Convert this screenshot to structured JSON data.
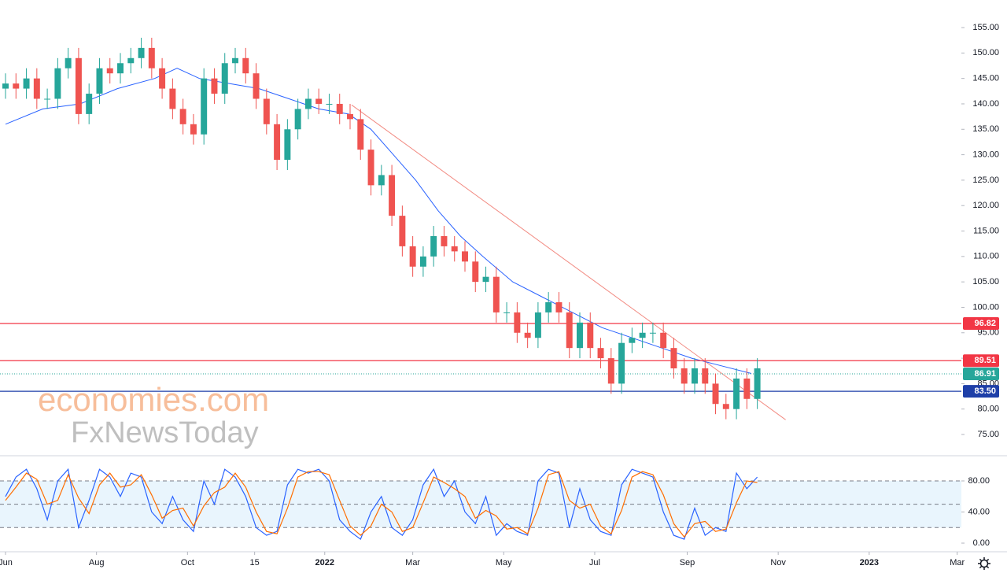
{
  "chart_data": {
    "type": "candlestick",
    "watermark": [
      "economies.com",
      "FxNewsToday"
    ],
    "up_color": "#26a69a",
    "down_color": "#ef5350",
    "x": [
      0,
      7,
      14,
      21,
      28,
      35,
      42,
      49,
      56,
      63,
      70,
      77,
      84,
      91,
      98,
      105,
      112,
      119,
      126,
      133,
      140,
      147,
      154,
      161,
      168,
      175,
      182,
      189,
      196,
      203,
      210,
      217,
      224,
      231,
      238,
      245,
      252,
      259,
      266,
      273,
      280,
      287,
      294,
      301,
      308,
      315,
      322,
      329,
      336,
      343,
      350,
      357,
      364,
      371,
      378,
      385,
      392,
      399,
      406,
      413,
      420,
      427,
      434,
      441,
      448,
      455,
      462,
      469,
      476,
      483,
      490,
      497,
      504
    ],
    "open": [
      143,
      144,
      143,
      145,
      141,
      141,
      147,
      149,
      138,
      142,
      147,
      146,
      148,
      149,
      151,
      147,
      143,
      139,
      136,
      134,
      145,
      142,
      148,
      149,
      146,
      141,
      136,
      129,
      135,
      139,
      141,
      140,
      140,
      138,
      137,
      131,
      124,
      126,
      118,
      112,
      108,
      110,
      114,
      112,
      111,
      109,
      105,
      106,
      99,
      99,
      95,
      94,
      99,
      101,
      99,
      92,
      97,
      92,
      90,
      85,
      93,
      94,
      95,
      95,
      92,
      88,
      85,
      88,
      85,
      81,
      80,
      86,
      82
    ],
    "high": [
      146,
      146,
      147,
      147,
      143,
      149,
      151,
      151,
      144,
      149,
      149,
      150,
      151,
      153,
      153,
      149,
      145,
      141,
      138,
      147,
      147,
      150,
      151,
      151,
      148,
      143,
      138,
      137,
      141,
      143,
      143,
      142,
      142,
      140,
      139,
      133,
      128,
      128,
      120,
      114,
      112,
      116,
      116,
      114,
      113,
      111,
      108,
      108,
      101,
      101,
      97,
      101,
      103,
      103,
      101,
      99,
      99,
      94,
      92,
      95,
      96,
      97,
      97,
      97,
      94,
      90,
      90,
      90,
      87,
      83,
      88,
      88,
      90
    ],
    "low": [
      141,
      141,
      141,
      139,
      139,
      139,
      145,
      136,
      136,
      140,
      144,
      144,
      146,
      147,
      145,
      141,
      137,
      134,
      132,
      132,
      140,
      140,
      146,
      144,
      139,
      134,
      127,
      127,
      133,
      137,
      138,
      138,
      136,
      135,
      129,
      122,
      122,
      116,
      110,
      106,
      106,
      108,
      110,
      109,
      107,
      103,
      103,
      97,
      97,
      93,
      92,
      92,
      97,
      97,
      90,
      90,
      90,
      88,
      83,
      83,
      91,
      92,
      93,
      90,
      86,
      83,
      83,
      83,
      79,
      78,
      78,
      80,
      80
    ],
    "close": [
      144,
      143,
      145,
      141,
      141,
      147,
      149,
      138,
      142,
      147,
      146,
      148,
      149,
      151,
      147,
      143,
      139,
      136,
      134,
      145,
      142,
      148,
      149,
      146,
      141,
      136,
      129,
      135,
      139,
      141,
      140,
      140,
      138,
      137,
      131,
      124,
      126,
      118,
      112,
      108,
      110,
      114,
      112,
      111,
      109,
      105,
      106,
      99,
      99,
      95,
      94,
      99,
      101,
      99,
      92,
      97,
      92,
      90,
      85,
      93,
      94,
      95,
      95,
      92,
      88,
      85,
      88,
      85,
      81,
      80,
      86,
      82,
      88
    ],
    "xlim": [
      -3.7,
      640.8
    ],
    "xticks": [
      {
        "value": 0,
        "label": "Jun"
      },
      {
        "value": 61,
        "label": "Aug"
      },
      {
        "value": 122,
        "label": "Oct"
      },
      {
        "value": 167,
        "label": "15"
      },
      {
        "value": 214,
        "label": "2022"
      },
      {
        "value": 273,
        "label": "Mar"
      },
      {
        "value": 334,
        "label": "May"
      },
      {
        "value": 395,
        "label": "Jul"
      },
      {
        "value": 457,
        "label": "Sep"
      },
      {
        "value": 518,
        "label": "Nov"
      },
      {
        "value": 579,
        "label": "2023"
      },
      {
        "value": 638,
        "label": "Mar"
      }
    ],
    "ylim": [
      70.98,
      160.42
    ],
    "yticks": [
      {
        "value": 75,
        "label": "75.00"
      },
      {
        "value": 80,
        "label": "80.00"
      },
      {
        "value": 85,
        "label": "85.00"
      },
      {
        "value": 90,
        "label": "90.00"
      },
      {
        "value": 95,
        "label": "95.00"
      },
      {
        "value": 100,
        "label": "100.00"
      },
      {
        "value": 105,
        "label": "105.00"
      },
      {
        "value": 110,
        "label": "110.00"
      },
      {
        "value": 115,
        "label": "115.00"
      },
      {
        "value": 120,
        "label": "120.00"
      },
      {
        "value": 125,
        "label": "125.00"
      },
      {
        "value": 130,
        "label": "130.00"
      },
      {
        "value": 135,
        "label": "135.00"
      },
      {
        "value": 140,
        "label": "140.00"
      },
      {
        "value": 145,
        "label": "145.00"
      },
      {
        "value": 150,
        "label": "150.00"
      },
      {
        "value": 155,
        "label": "155.00"
      }
    ],
    "moving_average": {
      "color": "#2962ff",
      "x": [
        0,
        25,
        50,
        75,
        100,
        115,
        130,
        150,
        170,
        190,
        210,
        230,
        245,
        260,
        275,
        290,
        305,
        320,
        340,
        360,
        380,
        400,
        420,
        440,
        460,
        480,
        500
      ],
      "values": [
        136,
        139,
        140,
        143,
        145,
        147,
        145,
        144,
        143,
        141,
        139,
        138,
        135,
        130,
        125,
        119,
        114,
        110,
        105,
        102,
        99,
        96,
        94,
        92,
        90,
        88.5,
        87
      ]
    },
    "trendline": {
      "color": "#f28b82",
      "x": [
        232,
        523
      ],
      "values": [
        139.8,
        77.9
      ]
    },
    "levels": [
      {
        "value": 96.82,
        "label": "96.82",
        "color": "#f23645",
        "style": "solid"
      },
      {
        "value": 89.51,
        "label": "89.51",
        "color": "#f23645",
        "style": "solid"
      },
      {
        "value": 86.91,
        "label": "86.91",
        "color": "#26a69a",
        "style": "dotted"
      },
      {
        "value": 83.5,
        "label": "83.50",
        "color": "#1e3fa8",
        "style": "solid"
      }
    ],
    "stochastic": {
      "ylim": [
        -10.1,
        111.4
      ],
      "yticks": [
        {
          "value": 0,
          "label": "0.00"
        },
        {
          "value": 40,
          "label": "40.00"
        },
        {
          "value": 80,
          "label": "80.00"
        }
      ],
      "band": [
        20,
        80
      ],
      "levels": [
        20,
        50,
        80
      ],
      "series": [
        {
          "color": "#2962ff",
          "values": [
            60,
            85,
            95,
            70,
            30,
            80,
            95,
            20,
            55,
            95,
            85,
            60,
            90,
            85,
            40,
            25,
            60,
            30,
            15,
            80,
            50,
            95,
            85,
            60,
            20,
            10,
            15,
            75,
            95,
            90,
            95,
            80,
            30,
            15,
            5,
            40,
            60,
            20,
            10,
            30,
            75,
            95,
            60,
            80,
            40,
            25,
            60,
            10,
            25,
            15,
            10,
            80,
            95,
            90,
            20,
            70,
            30,
            15,
            10,
            75,
            95,
            90,
            85,
            40,
            10,
            5,
            45,
            10,
            20,
            15,
            90,
            70,
            85
          ]
        },
        {
          "color": "#ff6d00",
          "values": [
            55,
            72,
            90,
            82,
            50,
            55,
            88,
            58,
            38,
            75,
            90,
            72,
            75,
            88,
            62,
            32,
            42,
            45,
            22,
            48,
            65,
            72,
            90,
            72,
            40,
            15,
            12,
            45,
            85,
            92,
            92,
            88,
            55,
            22,
            10,
            22,
            50,
            40,
            15,
            20,
            52,
            85,
            78,
            70,
            60,
            32,
            42,
            35,
            18,
            20,
            12,
            45,
            88,
            92,
            55,
            45,
            50,
            22,
            12,
            42,
            85,
            92,
            88,
            62,
            25,
            8,
            25,
            28,
            15,
            18,
            52,
            80,
            78
          ]
        }
      ]
    }
  }
}
